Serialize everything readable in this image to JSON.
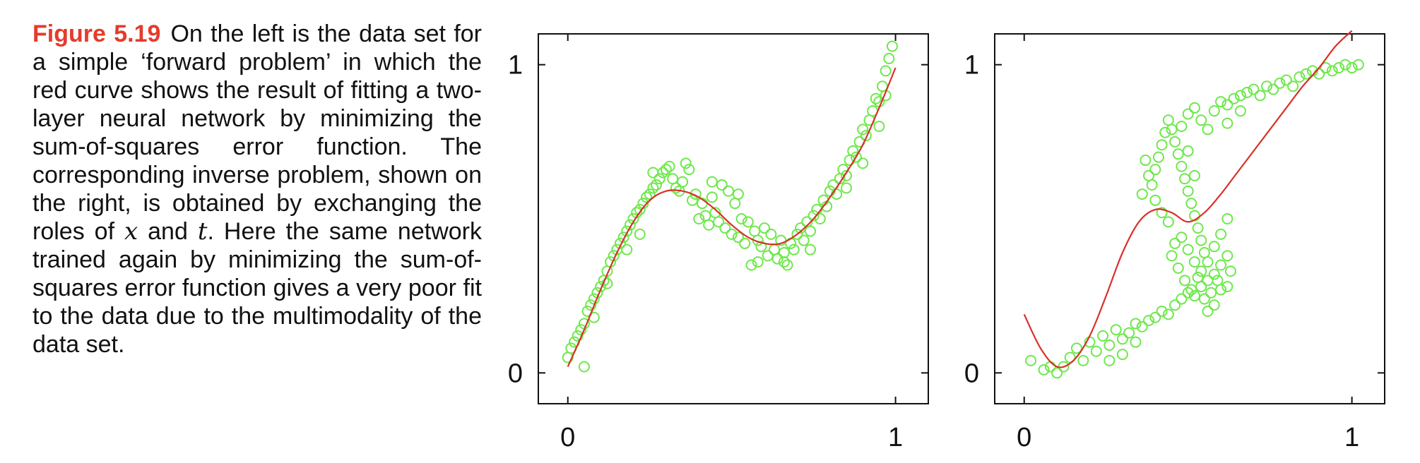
{
  "caption": {
    "label": "Figure 5.19",
    "text_1": "On the left is the data set for a simple ‘forward problem’ in which the red curve shows the result of fitting a two-layer neural network by minimizing the sum-of-squares error function. The corresponding inverse problem, shown on the right, is obtained by exchanging the roles of",
    "var_x": "x",
    "text_and": "and",
    "var_t": "t",
    "text_2": ". Here the same network trained again by minimizing the sum-of-squares error function gives a very poor fit to the data due to the multimodality of the data set."
  },
  "colors": {
    "points": "#6ee84c",
    "curve": "#d9302a",
    "axis": "#111111"
  },
  "chart_data": [
    {
      "type": "scatter",
      "panel": "left",
      "title": "",
      "xlabel": "",
      "ylabel": "",
      "xlim": [
        -0.09,
        1.1
      ],
      "ylim": [
        -0.1,
        1.1
      ],
      "xticks": [
        0,
        1
      ],
      "yticks": [
        0,
        1
      ],
      "xtick_labels": [
        "0",
        "1"
      ],
      "ytick_labels": [
        "0",
        "1"
      ],
      "grid": false,
      "marker": "open circle",
      "points": [
        [
          0.0,
          0.05
        ],
        [
          0.01,
          0.08
        ],
        [
          0.02,
          0.1
        ],
        [
          0.03,
          0.12
        ],
        [
          0.04,
          0.14
        ],
        [
          0.05,
          0.16
        ],
        [
          0.05,
          0.02
        ],
        [
          0.06,
          0.2
        ],
        [
          0.07,
          0.22
        ],
        [
          0.08,
          0.24
        ],
        [
          0.09,
          0.26
        ],
        [
          0.1,
          0.28
        ],
        [
          0.11,
          0.3
        ],
        [
          0.12,
          0.33
        ],
        [
          0.13,
          0.36
        ],
        [
          0.14,
          0.38
        ],
        [
          0.15,
          0.4
        ],
        [
          0.16,
          0.42
        ],
        [
          0.17,
          0.44
        ],
        [
          0.18,
          0.46
        ],
        [
          0.19,
          0.48
        ],
        [
          0.2,
          0.5
        ],
        [
          0.21,
          0.52
        ],
        [
          0.22,
          0.53
        ],
        [
          0.23,
          0.55
        ],
        [
          0.24,
          0.57
        ],
        [
          0.25,
          0.58
        ],
        [
          0.26,
          0.6
        ],
        [
          0.27,
          0.61
        ],
        [
          0.28,
          0.63
        ],
        [
          0.29,
          0.65
        ],
        [
          0.3,
          0.66
        ],
        [
          0.31,
          0.67
        ],
        [
          0.32,
          0.63
        ],
        [
          0.33,
          0.6
        ],
        [
          0.34,
          0.59
        ],
        [
          0.35,
          0.62
        ],
        [
          0.36,
          0.68
        ],
        [
          0.37,
          0.66
        ],
        [
          0.38,
          0.56
        ],
        [
          0.39,
          0.58
        ],
        [
          0.4,
          0.5
        ],
        [
          0.41,
          0.55
        ],
        [
          0.42,
          0.51
        ],
        [
          0.43,
          0.48
        ],
        [
          0.44,
          0.57
        ],
        [
          0.45,
          0.52
        ],
        [
          0.46,
          0.49
        ],
        [
          0.47,
          0.61
        ],
        [
          0.48,
          0.47
        ],
        [
          0.49,
          0.59
        ],
        [
          0.5,
          0.45
        ],
        [
          0.51,
          0.55
        ],
        [
          0.52,
          0.44
        ],
        [
          0.53,
          0.5
        ],
        [
          0.54,
          0.42
        ],
        [
          0.55,
          0.49
        ],
        [
          0.56,
          0.35
        ],
        [
          0.57,
          0.46
        ],
        [
          0.58,
          0.43
        ],
        [
          0.59,
          0.41
        ],
        [
          0.6,
          0.47
        ],
        [
          0.61,
          0.38
        ],
        [
          0.62,
          0.45
        ],
        [
          0.63,
          0.4
        ],
        [
          0.64,
          0.37
        ],
        [
          0.65,
          0.43
        ],
        [
          0.66,
          0.39
        ],
        [
          0.67,
          0.35
        ],
        [
          0.68,
          0.42
        ],
        [
          0.69,
          0.4
        ],
        [
          0.7,
          0.45
        ],
        [
          0.71,
          0.47
        ],
        [
          0.72,
          0.43
        ],
        [
          0.73,
          0.49
        ],
        [
          0.74,
          0.46
        ],
        [
          0.75,
          0.51
        ],
        [
          0.76,
          0.53
        ],
        [
          0.77,
          0.5
        ],
        [
          0.78,
          0.56
        ],
        [
          0.79,
          0.54
        ],
        [
          0.8,
          0.59
        ],
        [
          0.81,
          0.61
        ],
        [
          0.82,
          0.58
        ],
        [
          0.83,
          0.63
        ],
        [
          0.84,
          0.66
        ],
        [
          0.85,
          0.64
        ],
        [
          0.86,
          0.69
        ],
        [
          0.87,
          0.72
        ],
        [
          0.88,
          0.7
        ],
        [
          0.89,
          0.75
        ],
        [
          0.9,
          0.79
        ],
        [
          0.91,
          0.77
        ],
        [
          0.92,
          0.82
        ],
        [
          0.93,
          0.85
        ],
        [
          0.94,
          0.89
        ],
        [
          0.95,
          0.88
        ],
        [
          0.96,
          0.93
        ],
        [
          0.97,
          0.98
        ],
        [
          0.98,
          1.02
        ],
        [
          0.99,
          1.06
        ],
        [
          0.97,
          0.9
        ],
        [
          0.95,
          0.8
        ],
        [
          0.9,
          0.68
        ],
        [
          0.85,
          0.6
        ],
        [
          0.26,
          0.65
        ],
        [
          0.22,
          0.45
        ],
        [
          0.18,
          0.4
        ],
        [
          0.12,
          0.29
        ],
        [
          0.08,
          0.18
        ],
        [
          0.44,
          0.62
        ],
        [
          0.52,
          0.58
        ],
        [
          0.58,
          0.36
        ],
        [
          0.66,
          0.36
        ],
        [
          0.74,
          0.4
        ]
      ],
      "curve": {
        "name": "",
        "x": [
          0.0,
          0.05,
          0.1,
          0.15,
          0.2,
          0.25,
          0.3,
          0.35,
          0.4,
          0.45,
          0.5,
          0.55,
          0.6,
          0.65,
          0.7,
          0.75,
          0.8,
          0.85,
          0.9,
          0.95,
          1.0
        ],
        "y": [
          0.02,
          0.14,
          0.27,
          0.39,
          0.49,
          0.56,
          0.59,
          0.59,
          0.57,
          0.53,
          0.48,
          0.44,
          0.42,
          0.42,
          0.45,
          0.5,
          0.57,
          0.65,
          0.74,
          0.86,
          0.99
        ]
      }
    },
    {
      "type": "scatter",
      "panel": "right",
      "title": "",
      "xlabel": "",
      "ylabel": "",
      "xlim": [
        -0.09,
        1.1
      ],
      "ylim": [
        -0.1,
        1.1
      ],
      "xticks": [
        0,
        1
      ],
      "yticks": [
        0,
        1
      ],
      "xtick_labels": [
        "0",
        "1"
      ],
      "ytick_labels": [
        "0",
        "1"
      ],
      "grid": false,
      "marker": "open circle",
      "points": [
        [
          0.02,
          0.04
        ],
        [
          0.06,
          0.01
        ],
        [
          0.08,
          0.02
        ],
        [
          0.1,
          0.0
        ],
        [
          0.12,
          0.02
        ],
        [
          0.14,
          0.05
        ],
        [
          0.16,
          0.08
        ],
        [
          0.18,
          0.04
        ],
        [
          0.2,
          0.1
        ],
        [
          0.22,
          0.07
        ],
        [
          0.24,
          0.12
        ],
        [
          0.26,
          0.09
        ],
        [
          0.28,
          0.14
        ],
        [
          0.3,
          0.11
        ],
        [
          0.32,
          0.13
        ],
        [
          0.34,
          0.16
        ],
        [
          0.36,
          0.15
        ],
        [
          0.38,
          0.17
        ],
        [
          0.4,
          0.18
        ],
        [
          0.42,
          0.2
        ],
        [
          0.44,
          0.19
        ],
        [
          0.46,
          0.22
        ],
        [
          0.48,
          0.24
        ],
        [
          0.5,
          0.26
        ],
        [
          0.52,
          0.25
        ],
        [
          0.54,
          0.28
        ],
        [
          0.56,
          0.3
        ],
        [
          0.58,
          0.32
        ],
        [
          0.6,
          0.35
        ],
        [
          0.62,
          0.38
        ],
        [
          0.63,
          0.33
        ],
        [
          0.62,
          0.28
        ],
        [
          0.6,
          0.27
        ],
        [
          0.58,
          0.22
        ],
        [
          0.56,
          0.2
        ],
        [
          0.54,
          0.33
        ],
        [
          0.52,
          0.36
        ],
        [
          0.5,
          0.4
        ],
        [
          0.48,
          0.44
        ],
        [
          0.46,
          0.42
        ],
        [
          0.44,
          0.49
        ],
        [
          0.42,
          0.52
        ],
        [
          0.4,
          0.56
        ],
        [
          0.39,
          0.61
        ],
        [
          0.4,
          0.66
        ],
        [
          0.41,
          0.7
        ],
        [
          0.42,
          0.74
        ],
        [
          0.43,
          0.78
        ],
        [
          0.44,
          0.82
        ],
        [
          0.45,
          0.79
        ],
        [
          0.46,
          0.75
        ],
        [
          0.47,
          0.71
        ],
        [
          0.48,
          0.67
        ],
        [
          0.49,
          0.63
        ],
        [
          0.5,
          0.59
        ],
        [
          0.51,
          0.55
        ],
        [
          0.52,
          0.51
        ],
        [
          0.53,
          0.47
        ],
        [
          0.54,
          0.43
        ],
        [
          0.55,
          0.39
        ],
        [
          0.56,
          0.36
        ],
        [
          0.58,
          0.41
        ],
        [
          0.6,
          0.45
        ],
        [
          0.62,
          0.5
        ],
        [
          0.52,
          0.64
        ],
        [
          0.5,
          0.72
        ],
        [
          0.48,
          0.8
        ],
        [
          0.5,
          0.84
        ],
        [
          0.52,
          0.86
        ],
        [
          0.54,
          0.82
        ],
        [
          0.56,
          0.79
        ],
        [
          0.58,
          0.85
        ],
        [
          0.6,
          0.88
        ],
        [
          0.62,
          0.87
        ],
        [
          0.64,
          0.89
        ],
        [
          0.66,
          0.9
        ],
        [
          0.68,
          0.91
        ],
        [
          0.7,
          0.92
        ],
        [
          0.72,
          0.9
        ],
        [
          0.74,
          0.93
        ],
        [
          0.76,
          0.92
        ],
        [
          0.78,
          0.94
        ],
        [
          0.8,
          0.95
        ],
        [
          0.82,
          0.93
        ],
        [
          0.84,
          0.96
        ],
        [
          0.86,
          0.97
        ],
        [
          0.88,
          0.98
        ],
        [
          0.9,
          0.97
        ],
        [
          0.92,
          0.99
        ],
        [
          0.94,
          0.98
        ],
        [
          0.96,
          0.99
        ],
        [
          0.98,
          1.0
        ],
        [
          1.0,
          0.99
        ],
        [
          1.02,
          1.0
        ],
        [
          0.36,
          0.58
        ],
        [
          0.38,
          0.64
        ],
        [
          0.37,
          0.69
        ],
        [
          0.45,
          0.38
        ],
        [
          0.47,
          0.34
        ],
        [
          0.49,
          0.3
        ],
        [
          0.51,
          0.27
        ],
        [
          0.53,
          0.31
        ],
        [
          0.55,
          0.24
        ],
        [
          0.57,
          0.26
        ],
        [
          0.59,
          0.3
        ],
        [
          0.3,
          0.06
        ],
        [
          0.26,
          0.04
        ],
        [
          0.34,
          0.1
        ],
        [
          0.62,
          0.81
        ],
        [
          0.66,
          0.85
        ]
      ],
      "curve": {
        "name": "",
        "x": [
          0.0,
          0.05,
          0.1,
          0.15,
          0.2,
          0.25,
          0.3,
          0.35,
          0.4,
          0.45,
          0.5,
          0.55,
          0.6,
          0.65,
          0.7,
          0.75,
          0.8,
          0.85,
          0.9,
          0.95,
          1.0
        ],
        "y": [
          0.19,
          0.08,
          0.02,
          0.04,
          0.12,
          0.25,
          0.39,
          0.49,
          0.53,
          0.52,
          0.49,
          0.52,
          0.58,
          0.65,
          0.72,
          0.79,
          0.86,
          0.93,
          0.99,
          1.06,
          1.11
        ]
      }
    }
  ]
}
